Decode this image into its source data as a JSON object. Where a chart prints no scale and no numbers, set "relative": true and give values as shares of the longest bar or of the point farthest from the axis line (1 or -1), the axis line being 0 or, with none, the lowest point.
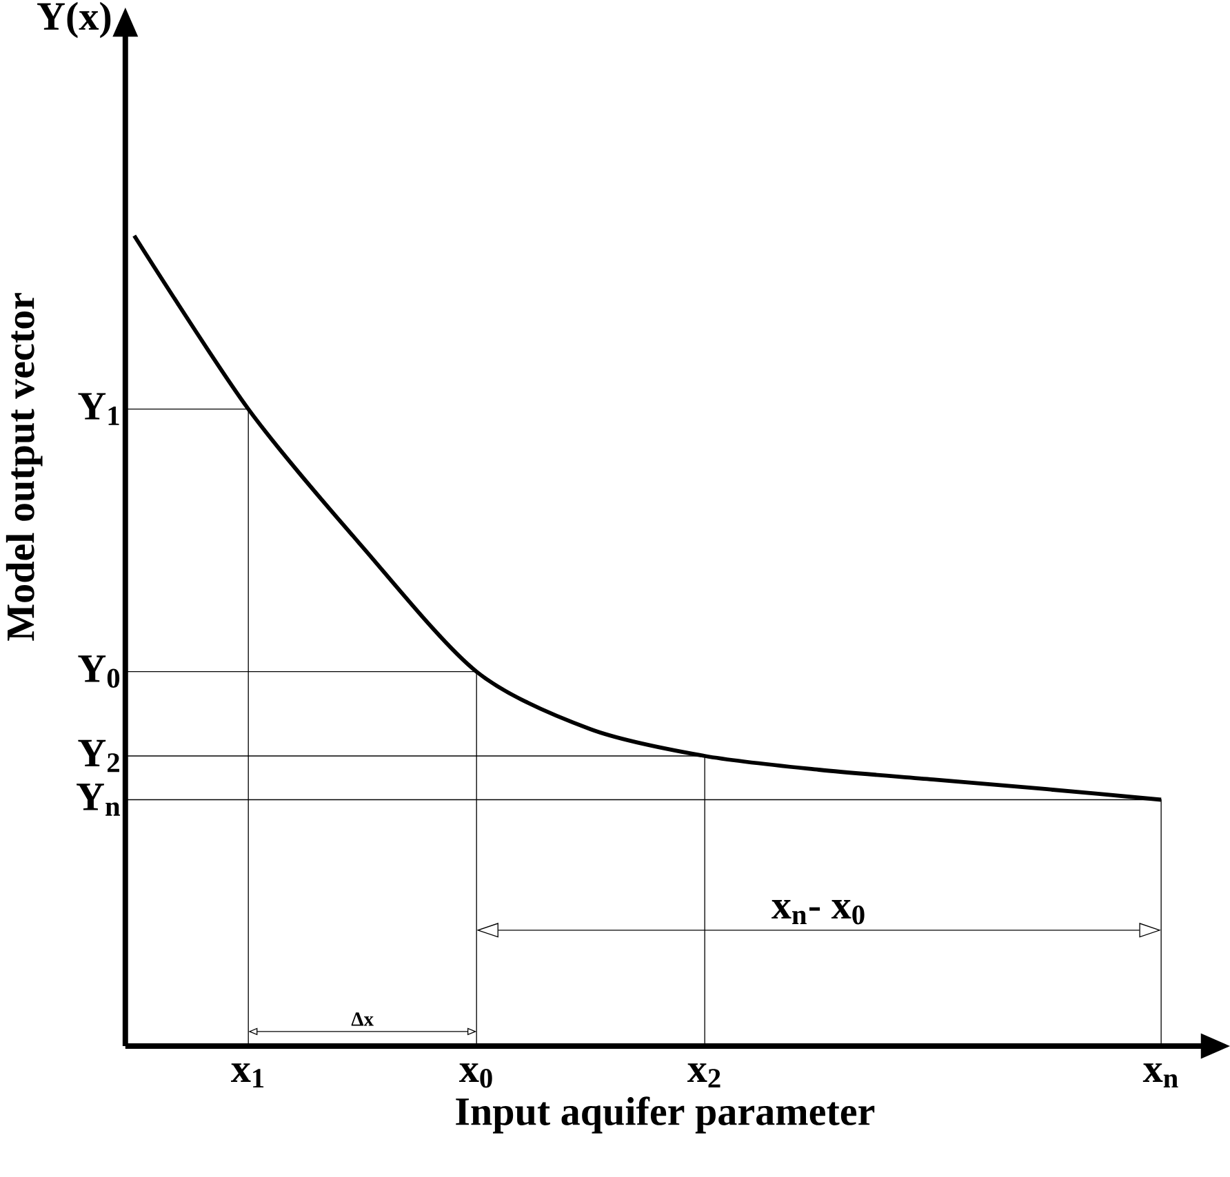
{
  "chart_data": {
    "type": "line",
    "relative": true,
    "xlabel": "Input aquifer parameter",
    "ylabel": "Model output vector",
    "categories": [
      null,
      "x$_{1}$",
      null,
      "x$_{0}$",
      null,
      "x$_{2}$",
      null,
      null,
      null,
      "x$_{n}$"
    ],
    "values": [
      1,
      0.786,
      0.616,
      0.462,
      0.391,
      0.358,
      0.341,
      0.329,
      0.317,
      0.304
    ],
    "color": "#000000",
    "annotations": [
      "Y(x)",
      "Y$_{1}$",
      "Y$_{0}$",
      "Y$_{2}$",
      "Y$_{n}$",
      "Δx",
      "x$_{n}$- x$_{0}$"
    ]
  }
}
